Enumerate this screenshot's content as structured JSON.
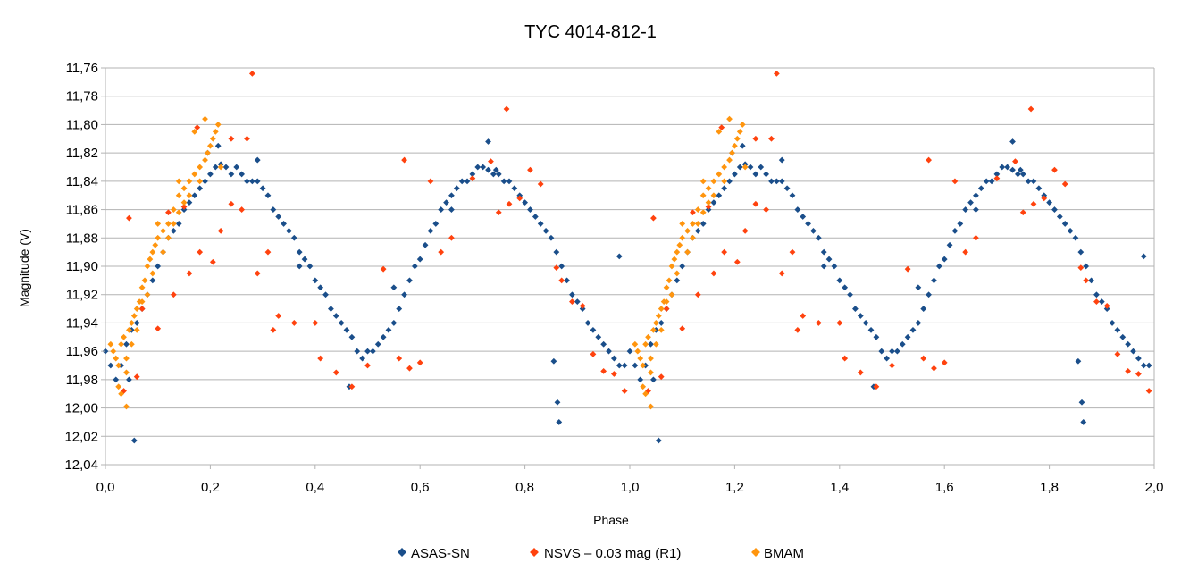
{
  "chart_data": {
    "type": "scatter",
    "title": "TYC 4014-812-1",
    "xlabel": "Phase",
    "ylabel": "Magnitude (V)",
    "xlim": [
      0.0,
      2.0
    ],
    "ylim": [
      11.76,
      12.04
    ],
    "y_inverted": true,
    "grid": "horizontal",
    "legend_position": "bottom",
    "x_ticks": [
      "0,0",
      "0,2",
      "0,4",
      "0,6",
      "0,8",
      "1,0",
      "1,2",
      "1,4",
      "1,6",
      "1,8",
      "2,0"
    ],
    "y_ticks": [
      "11,76",
      "11,78",
      "11,80",
      "11,82",
      "11,84",
      "11,86",
      "11,88",
      "11,90",
      "11,92",
      "11,94",
      "11,96",
      "11,98",
      "12,00",
      "12,02",
      "12,04"
    ],
    "series": [
      {
        "name": "ASAS-SN",
        "color": "#1a4e8a",
        "marker": "diamond",
        "points": [
          [
            0.0,
            11.96
          ],
          [
            0.01,
            11.97
          ],
          [
            0.02,
            11.98
          ],
          [
            0.03,
            11.97
          ],
          [
            0.04,
            11.955
          ],
          [
            0.05,
            11.945
          ],
          [
            0.06,
            11.94
          ],
          [
            0.07,
            11.93
          ],
          [
            0.08,
            11.92
          ],
          [
            0.09,
            11.91
          ],
          [
            0.1,
            11.9
          ],
          [
            0.11,
            11.89
          ],
          [
            0.12,
            11.88
          ],
          [
            0.13,
            11.875
          ],
          [
            0.14,
            11.87
          ],
          [
            0.15,
            11.86
          ],
          [
            0.16,
            11.855
          ],
          [
            0.17,
            11.85
          ],
          [
            0.18,
            11.845
          ],
          [
            0.19,
            11.84
          ],
          [
            0.2,
            11.835
          ],
          [
            0.21,
            11.83
          ],
          [
            0.22,
            11.828
          ],
          [
            0.23,
            11.83
          ],
          [
            0.24,
            11.835
          ],
          [
            0.25,
            11.83
          ],
          [
            0.26,
            11.835
          ],
          [
            0.27,
            11.84
          ],
          [
            0.28,
            11.84
          ],
          [
            0.29,
            11.84
          ],
          [
            0.3,
            11.845
          ],
          [
            0.31,
            11.85
          ],
          [
            0.32,
            11.86
          ],
          [
            0.33,
            11.865
          ],
          [
            0.34,
            11.87
          ],
          [
            0.35,
            11.875
          ],
          [
            0.36,
            11.88
          ],
          [
            0.37,
            11.89
          ],
          [
            0.38,
            11.895
          ],
          [
            0.39,
            11.9
          ],
          [
            0.4,
            11.91
          ],
          [
            0.41,
            11.915
          ],
          [
            0.42,
            11.92
          ],
          [
            0.43,
            11.93
          ],
          [
            0.44,
            11.935
          ],
          [
            0.45,
            11.94
          ],
          [
            0.46,
            11.945
          ],
          [
            0.47,
            11.95
          ],
          [
            0.48,
            11.96
          ],
          [
            0.49,
            11.965
          ],
          [
            0.5,
            11.96
          ],
          [
            0.51,
            11.96
          ],
          [
            0.52,
            11.955
          ],
          [
            0.53,
            11.95
          ],
          [
            0.54,
            11.945
          ],
          [
            0.55,
            11.94
          ],
          [
            0.56,
            11.93
          ],
          [
            0.57,
            11.92
          ],
          [
            0.58,
            11.91
          ],
          [
            0.59,
            11.9
          ],
          [
            0.6,
            11.895
          ],
          [
            0.61,
            11.885
          ],
          [
            0.62,
            11.875
          ],
          [
            0.63,
            11.87
          ],
          [
            0.64,
            11.86
          ],
          [
            0.65,
            11.855
          ],
          [
            0.66,
            11.85
          ],
          [
            0.67,
            11.845
          ],
          [
            0.68,
            11.84
          ],
          [
            0.69,
            11.84
          ],
          [
            0.7,
            11.835
          ],
          [
            0.71,
            11.83
          ],
          [
            0.72,
            11.83
          ],
          [
            0.73,
            11.832
          ],
          [
            0.74,
            11.835
          ],
          [
            0.75,
            11.835
          ],
          [
            0.76,
            11.84
          ],
          [
            0.77,
            11.84
          ],
          [
            0.78,
            11.845
          ],
          [
            0.79,
            11.85
          ],
          [
            0.8,
            11.855
          ],
          [
            0.81,
            11.86
          ],
          [
            0.82,
            11.865
          ],
          [
            0.83,
            11.87
          ],
          [
            0.84,
            11.875
          ],
          [
            0.85,
            11.88
          ],
          [
            0.86,
            11.89
          ],
          [
            0.87,
            11.9
          ],
          [
            0.88,
            11.91
          ],
          [
            0.89,
            11.92
          ],
          [
            0.9,
            11.925
          ],
          [
            0.91,
            11.93
          ],
          [
            0.92,
            11.94
          ],
          [
            0.93,
            11.945
          ],
          [
            0.94,
            11.95
          ],
          [
            0.95,
            11.955
          ],
          [
            0.96,
            11.96
          ],
          [
            0.97,
            11.965
          ],
          [
            0.98,
            11.97
          ],
          [
            0.99,
            11.97
          ],
          [
            0.055,
            12.023
          ],
          [
            0.865,
            12.01
          ],
          [
            0.862,
            11.996
          ],
          [
            0.855,
            11.967
          ],
          [
            0.98,
            11.893
          ],
          [
            0.73,
            11.812
          ],
          [
            0.29,
            11.825
          ],
          [
            0.465,
            11.985
          ],
          [
            0.745,
            11.832
          ],
          [
            0.37,
            11.9
          ],
          [
            0.55,
            11.915
          ],
          [
            0.66,
            11.86
          ],
          [
            0.195,
            11.82
          ],
          [
            0.215,
            11.815
          ],
          [
            0.045,
            11.98
          ]
        ]
      },
      {
        "name": "NSVS – 0.03 mag (R1)",
        "color": "#ff420e",
        "marker": "diamond",
        "points": [
          [
            0.28,
            11.764
          ],
          [
            0.765,
            11.789
          ],
          [
            0.175,
            11.802
          ],
          [
            0.24,
            11.81
          ],
          [
            0.045,
            11.866
          ],
          [
            0.07,
            11.93
          ],
          [
            0.1,
            11.944
          ],
          [
            0.13,
            11.92
          ],
          [
            0.16,
            11.905
          ],
          [
            0.18,
            11.89
          ],
          [
            0.205,
            11.897
          ],
          [
            0.22,
            11.875
          ],
          [
            0.26,
            11.86
          ],
          [
            0.29,
            11.905
          ],
          [
            0.31,
            11.89
          ],
          [
            0.32,
            11.945
          ],
          [
            0.33,
            11.935
          ],
          [
            0.4,
            11.94
          ],
          [
            0.41,
            11.965
          ],
          [
            0.44,
            11.975
          ],
          [
            0.47,
            11.985
          ],
          [
            0.5,
            11.97
          ],
          [
            0.53,
            11.902
          ],
          [
            0.56,
            11.965
          ],
          [
            0.58,
            11.972
          ],
          [
            0.6,
            11.968
          ],
          [
            0.62,
            11.84
          ],
          [
            0.64,
            11.89
          ],
          [
            0.66,
            11.88
          ],
          [
            0.7,
            11.838
          ],
          [
            0.75,
            11.862
          ],
          [
            0.77,
            11.856
          ],
          [
            0.79,
            11.852
          ],
          [
            0.81,
            11.832
          ],
          [
            0.83,
            11.842
          ],
          [
            0.86,
            11.901
          ],
          [
            0.87,
            11.91
          ],
          [
            0.89,
            11.925
          ],
          [
            0.91,
            11.928
          ],
          [
            0.93,
            11.962
          ],
          [
            0.95,
            11.974
          ],
          [
            0.97,
            11.976
          ],
          [
            0.12,
            11.862
          ],
          [
            0.15,
            11.858
          ],
          [
            0.24,
            11.856
          ],
          [
            0.27,
            11.81
          ],
          [
            0.57,
            11.825
          ],
          [
            0.36,
            11.94
          ],
          [
            0.06,
            11.978
          ],
          [
            0.735,
            11.826
          ],
          [
            0.99,
            11.988
          ],
          [
            0.035,
            11.988
          ]
        ]
      },
      {
        "name": "BMAM",
        "color": "#ff950e",
        "marker": "diamond",
        "points": [
          [
            0.01,
            11.955
          ],
          [
            0.015,
            11.96
          ],
          [
            0.02,
            11.965
          ],
          [
            0.025,
            11.97
          ],
          [
            0.03,
            11.955
          ],
          [
            0.035,
            11.95
          ],
          [
            0.04,
            11.965
          ],
          [
            0.045,
            11.945
          ],
          [
            0.05,
            11.94
          ],
          [
            0.055,
            11.935
          ],
          [
            0.06,
            11.93
          ],
          [
            0.065,
            11.925
          ],
          [
            0.07,
            11.915
          ],
          [
            0.075,
            11.91
          ],
          [
            0.08,
            11.9
          ],
          [
            0.085,
            11.895
          ],
          [
            0.09,
            11.89
          ],
          [
            0.095,
            11.885
          ],
          [
            0.1,
            11.88
          ],
          [
            0.11,
            11.875
          ],
          [
            0.12,
            11.87
          ],
          [
            0.13,
            11.86
          ],
          [
            0.14,
            11.85
          ],
          [
            0.15,
            11.845
          ],
          [
            0.16,
            11.84
          ],
          [
            0.17,
            11.835
          ],
          [
            0.18,
            11.83
          ],
          [
            0.19,
            11.825
          ],
          [
            0.195,
            11.82
          ],
          [
            0.2,
            11.815
          ],
          [
            0.205,
            11.81
          ],
          [
            0.21,
            11.805
          ],
          [
            0.215,
            11.8
          ],
          [
            0.19,
            11.796
          ],
          [
            0.17,
            11.805
          ],
          [
            0.14,
            11.862
          ],
          [
            0.12,
            11.88
          ],
          [
            0.08,
            11.92
          ],
          [
            0.06,
            11.945
          ],
          [
            0.04,
            11.975
          ],
          [
            0.03,
            11.99
          ],
          [
            0.04,
            11.999
          ],
          [
            0.025,
            11.985
          ],
          [
            0.1,
            11.87
          ],
          [
            0.15,
            11.855
          ],
          [
            0.18,
            11.84
          ],
          [
            0.22,
            11.83
          ],
          [
            0.09,
            11.905
          ],
          [
            0.11,
            11.89
          ],
          [
            0.13,
            11.87
          ],
          [
            0.16,
            11.85
          ],
          [
            0.07,
            11.925
          ],
          [
            0.05,
            11.955
          ],
          [
            0.14,
            11.84
          ]
        ]
      }
    ]
  }
}
